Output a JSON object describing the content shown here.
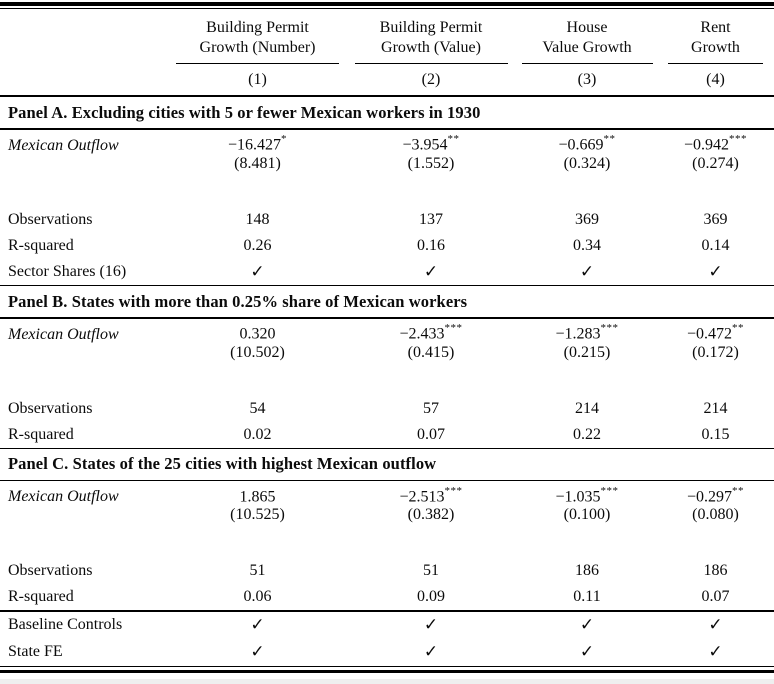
{
  "table": {
    "columns": [
      {
        "line1": "Building Permit",
        "line2": "Growth (Number)",
        "num": "(1)"
      },
      {
        "line1": "Building Permit",
        "line2": "Growth (Value)",
        "num": "(2)"
      },
      {
        "line1": "House",
        "line2": "Value Growth",
        "num": "(3)"
      },
      {
        "line1": "Rent",
        "line2": "Growth",
        "num": "(4)"
      }
    ],
    "panels": [
      {
        "title": "Panel A. Excluding cities with 5 or fewer Mexican workers in 1930",
        "coef_label": "Mexican Outflow",
        "coefs": [
          {
            "v": "−16.427",
            "s": "*"
          },
          {
            "v": "−3.954",
            "s": "**"
          },
          {
            "v": "−0.669",
            "s": "**"
          },
          {
            "v": "−0.942",
            "s": "***"
          }
        ],
        "ses": [
          "(8.481)",
          "(1.552)",
          "(0.324)",
          "(0.274)"
        ],
        "stats": [
          {
            "label": "Observations",
            "values": [
              "148",
              "137",
              "369",
              "369"
            ]
          },
          {
            "label": "R-squared",
            "values": [
              "0.26",
              "0.16",
              "0.34",
              "0.14"
            ]
          },
          {
            "label": "Sector Shares (16)",
            "values": [
              "✓",
              "✓",
              "✓",
              "✓"
            ]
          }
        ]
      },
      {
        "title": "Panel B. States with more than 0.25% share of Mexican workers",
        "coef_label": "Mexican Outflow",
        "coefs": [
          {
            "v": "0.320",
            "s": ""
          },
          {
            "v": "−2.433",
            "s": "***"
          },
          {
            "v": "−1.283",
            "s": "***"
          },
          {
            "v": "−0.472",
            "s": "**"
          }
        ],
        "ses": [
          "(10.502)",
          "(0.415)",
          "(0.215)",
          "(0.172)"
        ],
        "stats": [
          {
            "label": "Observations",
            "values": [
              "54",
              "57",
              "214",
              "214"
            ]
          },
          {
            "label": "R-squared",
            "values": [
              "0.02",
              "0.07",
              "0.22",
              "0.15"
            ]
          }
        ]
      },
      {
        "title": "Panel C. States of the 25 cities with highest Mexican outflow",
        "coef_label": "Mexican Outflow",
        "coefs": [
          {
            "v": "1.865",
            "s": ""
          },
          {
            "v": "−2.513",
            "s": "***"
          },
          {
            "v": "−1.035",
            "s": "***"
          },
          {
            "v": "−0.297",
            "s": "**"
          }
        ],
        "ses": [
          "(10.525)",
          "(0.382)",
          "(0.100)",
          "(0.080)"
        ],
        "stats": [
          {
            "label": "Observations",
            "values": [
              "51",
              "51",
              "186",
              "186"
            ]
          },
          {
            "label": "R-squared",
            "values": [
              "0.06",
              "0.09",
              "0.11",
              "0.07"
            ]
          }
        ]
      }
    ],
    "footer_rows": [
      {
        "label": "Baseline Controls",
        "values": [
          "✓",
          "✓",
          "✓",
          "✓"
        ]
      },
      {
        "label": "State FE",
        "values": [
          "✓",
          "✓",
          "✓",
          "✓"
        ]
      }
    ]
  },
  "colors": {
    "text": "#0b0b0b",
    "rule": "#000000",
    "background": "#ffffff"
  }
}
